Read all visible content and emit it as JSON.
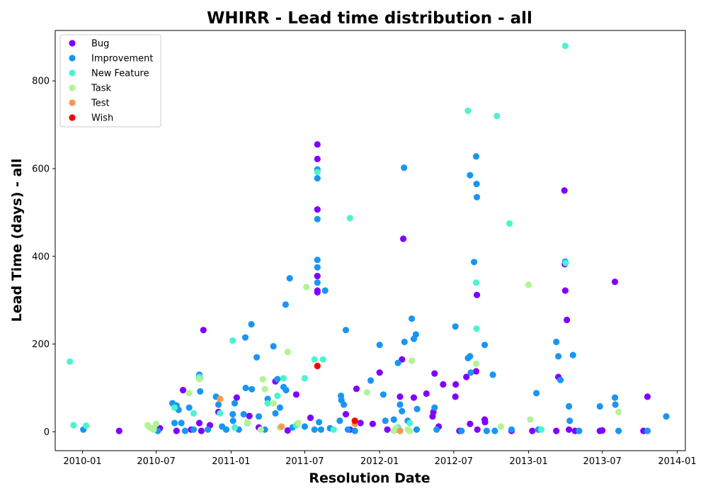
{
  "chart_data": {
    "type": "scatter",
    "title": "WHIRR - Lead time distribution - all",
    "xlabel": "Resolution Date",
    "ylabel": "Lead Time (days) - all",
    "x_ticks": [
      "2010-01",
      "2010-07",
      "2011-01",
      "2011-07",
      "2012-01",
      "2012-07",
      "2013-01",
      "2013-07",
      "2014-01"
    ],
    "y_ticks": [
      0,
      200,
      400,
      600,
      800
    ],
    "xlim": [
      "2009-10-26",
      "2014-01-21"
    ],
    "ylim": [
      -43,
      915
    ],
    "grid": false,
    "legend_position": "top-left",
    "series": [
      {
        "name": "Bug",
        "color": "#8000ff",
        "points": [
          [
            "2010-04-01",
            2
          ],
          [
            "2010-07-10",
            8
          ],
          [
            "2010-08-20",
            2
          ],
          [
            "2010-09-05",
            95
          ],
          [
            "2010-09-25",
            5
          ],
          [
            "2010-10-15",
            20
          ],
          [
            "2010-10-20",
            2
          ],
          [
            "2010-10-25",
            232
          ],
          [
            "2010-11-10",
            15
          ],
          [
            "2010-12-01",
            45
          ],
          [
            "2011-01-15",
            78
          ],
          [
            "2011-02-15",
            36
          ],
          [
            "2011-03-10",
            10
          ],
          [
            "2011-04-20",
            115
          ],
          [
            "2011-05-20",
            3
          ],
          [
            "2011-06-10",
            85
          ],
          [
            "2011-07-15",
            32
          ],
          [
            "2011-08-01",
            655
          ],
          [
            "2011-08-01",
            622
          ],
          [
            "2011-08-01",
            507
          ],
          [
            "2011-08-01",
            355
          ],
          [
            "2011-08-01",
            322
          ],
          [
            "2011-08-01",
            318
          ],
          [
            "2011-10-10",
            40
          ],
          [
            "2011-10-20",
            5
          ],
          [
            "2011-11-05",
            98
          ],
          [
            "2011-11-15",
            20
          ],
          [
            "2011-12-15",
            18
          ],
          [
            "2012-01-01",
            135
          ],
          [
            "2012-01-20",
            5
          ],
          [
            "2012-02-20",
            80
          ],
          [
            "2012-02-25",
            165
          ],
          [
            "2012-02-28",
            440
          ],
          [
            "2012-03-25",
            78
          ],
          [
            "2012-04-25",
            87
          ],
          [
            "2012-05-10",
            35
          ],
          [
            "2012-05-12",
            45
          ],
          [
            "2012-05-15",
            133
          ],
          [
            "2012-05-25",
            12
          ],
          [
            "2012-06-05",
            108
          ],
          [
            "2012-07-05",
            80
          ],
          [
            "2012-07-06",
            108
          ],
          [
            "2012-07-15",
            2
          ],
          [
            "2012-08-01",
            125
          ],
          [
            "2012-08-10",
            18
          ],
          [
            "2012-08-25",
            138
          ],
          [
            "2012-08-27",
            312
          ],
          [
            "2012-08-28",
            5
          ],
          [
            "2012-09-15",
            28
          ],
          [
            "2012-09-16",
            22
          ],
          [
            "2012-11-20",
            2
          ],
          [
            "2013-01-10",
            2
          ],
          [
            "2013-03-10",
            2
          ],
          [
            "2013-03-15",
            125
          ],
          [
            "2013-03-30",
            550
          ],
          [
            "2013-03-31",
            382
          ],
          [
            "2013-04-01",
            322
          ],
          [
            "2013-04-05",
            255
          ],
          [
            "2013-04-10",
            5
          ],
          [
            "2013-04-25",
            2
          ],
          [
            "2013-06-25",
            2
          ],
          [
            "2013-07-01",
            3
          ],
          [
            "2013-08-01",
            342
          ],
          [
            "2013-10-10",
            2
          ],
          [
            "2013-10-20",
            80
          ]
        ]
      },
      {
        "name": "Improvement",
        "color": "#1996f3",
        "points": [
          [
            "2010-01-03",
            5
          ],
          [
            "2010-07-05",
            2
          ],
          [
            "2010-08-10",
            65
          ],
          [
            "2010-08-15",
            20
          ],
          [
            "2010-08-20",
            60
          ],
          [
            "2010-08-25",
            50
          ],
          [
            "2010-09-01",
            20
          ],
          [
            "2010-09-10",
            2
          ],
          [
            "2010-09-20",
            55
          ],
          [
            "2010-10-01",
            5
          ],
          [
            "2010-10-15",
            130
          ],
          [
            "2010-10-16",
            122
          ],
          [
            "2010-10-17",
            92
          ],
          [
            "2010-11-05",
            5
          ],
          [
            "2010-11-25",
            80
          ],
          [
            "2010-12-01",
            62
          ],
          [
            "2010-12-10",
            12
          ],
          [
            "2010-12-20",
            5
          ],
          [
            "2011-01-05",
            40
          ],
          [
            "2011-01-06",
            25
          ],
          [
            "2011-01-10",
            65
          ],
          [
            "2011-01-20",
            5
          ],
          [
            "2011-02-01",
            40
          ],
          [
            "2011-02-05",
            215
          ],
          [
            "2011-02-06",
            100
          ],
          [
            "2011-02-20",
            245
          ],
          [
            "2011-02-21",
            97
          ],
          [
            "2011-03-05",
            170
          ],
          [
            "2011-03-10",
            35
          ],
          [
            "2011-03-25",
            5
          ],
          [
            "2011-04-01",
            75
          ],
          [
            "2011-04-15",
            195
          ],
          [
            "2011-04-20",
            42
          ],
          [
            "2011-04-25",
            120
          ],
          [
            "2011-05-01",
            55
          ],
          [
            "2011-05-10",
            102
          ],
          [
            "2011-05-15",
            290
          ],
          [
            "2011-05-16",
            95
          ],
          [
            "2011-05-25",
            350
          ],
          [
            "2011-06-01",
            10
          ],
          [
            "2011-07-01",
            12
          ],
          [
            "2011-07-25",
            5
          ],
          [
            "2011-08-01",
            598
          ],
          [
            "2011-08-01",
            578
          ],
          [
            "2011-08-01",
            485
          ],
          [
            "2011-08-01",
            392
          ],
          [
            "2011-08-01",
            375
          ],
          [
            "2011-08-01",
            340
          ],
          [
            "2011-08-05",
            22
          ],
          [
            "2011-08-10",
            5
          ],
          [
            "2011-08-20",
            322
          ],
          [
            "2011-09-01",
            8
          ],
          [
            "2011-09-25",
            25
          ],
          [
            "2011-09-28",
            82
          ],
          [
            "2011-09-29",
            72
          ],
          [
            "2011-10-05",
            62
          ],
          [
            "2011-10-10",
            232
          ],
          [
            "2011-10-15",
            5
          ],
          [
            "2011-11-01",
            2
          ],
          [
            "2011-12-10",
            117
          ],
          [
            "2012-01-01",
            198
          ],
          [
            "2012-01-10",
            85
          ],
          [
            "2012-01-15",
            25
          ],
          [
            "2012-02-05",
            28
          ],
          [
            "2012-02-10",
            5
          ],
          [
            "2012-02-15",
            157
          ],
          [
            "2012-02-20",
            62
          ],
          [
            "2012-02-25",
            47
          ],
          [
            "2012-03-01",
            602
          ],
          [
            "2012-03-02",
            205
          ],
          [
            "2012-03-10",
            25
          ],
          [
            "2012-03-20",
            258
          ],
          [
            "2012-03-25",
            212
          ],
          [
            "2012-03-30",
            222
          ],
          [
            "2012-04-01",
            5
          ],
          [
            "2012-04-02",
            52
          ],
          [
            "2012-05-15",
            55
          ],
          [
            "2012-05-20",
            5
          ],
          [
            "2012-07-05",
            240
          ],
          [
            "2012-07-20",
            2
          ],
          [
            "2012-08-05",
            168
          ],
          [
            "2012-08-10",
            172
          ],
          [
            "2012-08-12",
            135
          ],
          [
            "2012-08-10",
            585
          ],
          [
            "2012-08-20",
            387
          ],
          [
            "2012-08-25",
            628
          ],
          [
            "2012-08-26",
            565
          ],
          [
            "2012-08-27",
            535
          ],
          [
            "2012-09-15",
            198
          ],
          [
            "2012-09-20",
            2
          ],
          [
            "2012-10-05",
            130
          ],
          [
            "2012-10-10",
            2
          ],
          [
            "2012-11-20",
            5
          ],
          [
            "2013-01-20",
            88
          ],
          [
            "2013-01-25",
            5
          ],
          [
            "2013-03-10",
            205
          ],
          [
            "2013-03-15",
            172
          ],
          [
            "2013-03-20",
            118
          ],
          [
            "2013-04-01",
            388
          ],
          [
            "2013-04-10",
            58
          ],
          [
            "2013-04-12",
            25
          ],
          [
            "2013-04-20",
            175
          ],
          [
            "2013-05-05",
            2
          ],
          [
            "2013-06-25",
            58
          ],
          [
            "2013-08-01",
            78
          ],
          [
            "2013-08-02",
            62
          ],
          [
            "2013-08-10",
            2
          ],
          [
            "2013-10-20",
            2
          ],
          [
            "2013-12-05",
            35
          ]
        ]
      },
      {
        "name": "New Feature",
        "color": "#4df3ce",
        "points": [
          [
            "2009-12-01",
            160
          ],
          [
            "2009-12-10",
            15
          ],
          [
            "2010-01-10",
            14
          ],
          [
            "2010-08-15",
            55
          ],
          [
            "2010-10-01",
            42
          ],
          [
            "2010-10-15",
            125
          ],
          [
            "2010-12-05",
            42
          ],
          [
            "2011-01-05",
            208
          ],
          [
            "2011-01-10",
            10
          ],
          [
            "2011-02-10",
            20
          ],
          [
            "2011-04-01",
            65
          ],
          [
            "2011-04-25",
            82
          ],
          [
            "2011-05-10",
            122
          ],
          [
            "2011-06-10",
            15
          ],
          [
            "2011-07-01",
            122
          ],
          [
            "2011-07-25",
            165
          ],
          [
            "2011-08-01",
            592
          ],
          [
            "2011-08-15",
            165
          ],
          [
            "2011-09-10",
            5
          ],
          [
            "2011-10-20",
            487
          ],
          [
            "2012-02-15",
            10
          ],
          [
            "2012-03-15",
            20
          ],
          [
            "2012-08-05",
            732
          ],
          [
            "2012-08-25",
            340
          ],
          [
            "2012-08-26",
            235
          ],
          [
            "2012-10-15",
            720
          ],
          [
            "2012-11-15",
            475
          ],
          [
            "2013-02-01",
            5
          ],
          [
            "2013-04-01",
            880
          ],
          [
            "2013-04-02",
            385
          ]
        ]
      },
      {
        "name": "Task",
        "color": "#b3f396",
        "points": [
          [
            "2010-06-10",
            15
          ],
          [
            "2010-06-15",
            10
          ],
          [
            "2010-06-20",
            8
          ],
          [
            "2010-06-25",
            5
          ],
          [
            "2010-07-01",
            18
          ],
          [
            "2010-09-20",
            88
          ],
          [
            "2010-10-15",
            120
          ],
          [
            "2011-02-10",
            22
          ],
          [
            "2011-03-15",
            5
          ],
          [
            "2011-03-20",
            120
          ],
          [
            "2011-03-25",
            97
          ],
          [
            "2011-04-15",
            65
          ],
          [
            "2011-05-01",
            10
          ],
          [
            "2011-05-20",
            182
          ],
          [
            "2011-06-15",
            20
          ],
          [
            "2011-07-05",
            330
          ],
          [
            "2011-12-01",
            90
          ],
          [
            "2012-02-05",
            2
          ],
          [
            "2012-02-10",
            8
          ],
          [
            "2012-03-10",
            5
          ],
          [
            "2012-03-15",
            2
          ],
          [
            "2012-03-20",
            162
          ],
          [
            "2012-08-25",
            155
          ],
          [
            "2012-10-25",
            12
          ],
          [
            "2013-01-01",
            335
          ],
          [
            "2013-01-05",
            28
          ],
          [
            "2013-08-10",
            45
          ]
        ]
      },
      {
        "name": "Test",
        "color": "#ff964f",
        "points": [
          [
            "2010-12-05",
            75
          ],
          [
            "2011-05-05",
            12
          ],
          [
            "2011-11-01",
            18
          ],
          [
            "2012-02-20",
            2
          ]
        ]
      },
      {
        "name": "Wish",
        "color": "#ff0000",
        "points": [
          [
            "2011-08-01",
            150
          ],
          [
            "2011-11-01",
            25
          ]
        ]
      }
    ]
  }
}
